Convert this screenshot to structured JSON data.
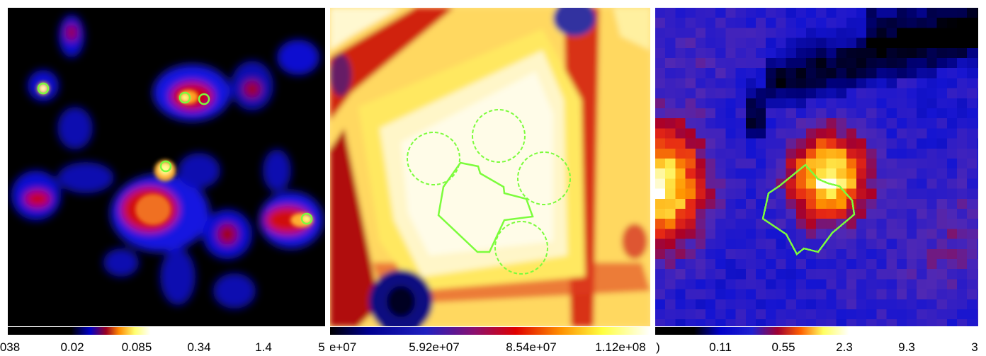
{
  "panels": [
    {
      "name": "smoothed-map",
      "colorbar_ticks": [
        "038",
        "0.02",
        "0.085",
        "0.34",
        "1.4",
        "5"
      ]
    },
    {
      "name": "exposure-map",
      "colorbar_ticks": [
        "e+07",
        "5.92e+07",
        "8.54e+07",
        "1.12e+08"
      ]
    },
    {
      "name": "pixelated-map",
      "colorbar_ticks": [
        ")",
        "0.11",
        "0.55",
        "2.3",
        "9.3",
        "3"
      ]
    }
  ],
  "colors": {
    "region_green": "#7CFC3C",
    "colormap": [
      "#000000",
      "#0000c8",
      "#b40000",
      "#ff9600",
      "#ffff50",
      "#ffffff"
    ]
  }
}
